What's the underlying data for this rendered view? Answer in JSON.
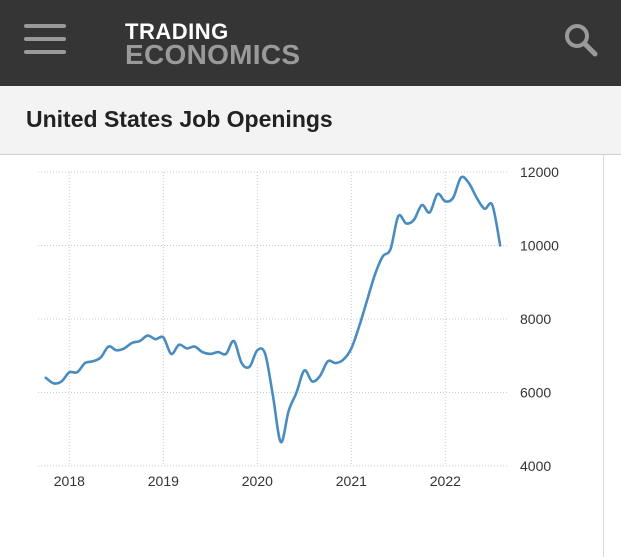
{
  "header": {
    "menu_icon": "hamburger-menu-icon",
    "logo_line1": "TRADING",
    "logo_line2": "ECONOMICS",
    "search_icon": "search-icon",
    "background": "#353535"
  },
  "page": {
    "title": "United States Job Openings"
  },
  "chart_data": {
    "type": "line",
    "title": "",
    "xlabel": "",
    "ylabel": "",
    "line_color": "#4a8cc0",
    "grid": true,
    "y_axis_position": "right",
    "xlim": [
      "2017-09",
      "2022-09"
    ],
    "ylim": [
      4000,
      12000
    ],
    "x_ticks": [
      "2018",
      "2019",
      "2020",
      "2021",
      "2022"
    ],
    "y_ticks": [
      4000,
      6000,
      8000,
      10000,
      12000
    ],
    "series": [
      {
        "x": [
          "2017-10",
          "2017-11",
          "2017-12",
          "2018-01",
          "2018-02",
          "2018-03",
          "2018-04",
          "2018-05",
          "2018-06",
          "2018-07",
          "2018-08",
          "2018-09",
          "2018-10",
          "2018-11",
          "2018-12",
          "2019-01",
          "2019-02",
          "2019-03",
          "2019-04",
          "2019-05",
          "2019-06",
          "2019-07",
          "2019-08",
          "2019-09",
          "2019-10",
          "2019-11",
          "2019-12",
          "2020-01",
          "2020-02",
          "2020-03",
          "2020-04",
          "2020-05",
          "2020-06",
          "2020-07",
          "2020-08",
          "2020-09",
          "2020-10",
          "2020-11",
          "2020-12",
          "2021-01",
          "2021-02",
          "2021-03",
          "2021-04",
          "2021-05",
          "2021-06",
          "2021-07",
          "2021-08",
          "2021-09",
          "2021-10",
          "2021-11",
          "2021-12",
          "2022-01",
          "2022-02",
          "2022-03",
          "2022-04",
          "2022-05",
          "2022-06",
          "2022-07",
          "2022-08"
        ],
        "values": [
          6400,
          6250,
          6300,
          6550,
          6550,
          6800,
          6850,
          6950,
          7250,
          7150,
          7200,
          7350,
          7400,
          7550,
          7450,
          7500,
          7050,
          7300,
          7200,
          7250,
          7100,
          7050,
          7100,
          7050,
          7400,
          6800,
          6700,
          7150,
          7050,
          5900,
          4650,
          5500,
          6000,
          6600,
          6300,
          6450,
          6850,
          6800,
          6900,
          7200,
          7800,
          8500,
          9200,
          9700,
          9900,
          10800,
          10600,
          10700,
          11100,
          10900,
          11400,
          11200,
          11300,
          11850,
          11700,
          11300,
          11000,
          11100,
          10000
        ]
      }
    ]
  }
}
